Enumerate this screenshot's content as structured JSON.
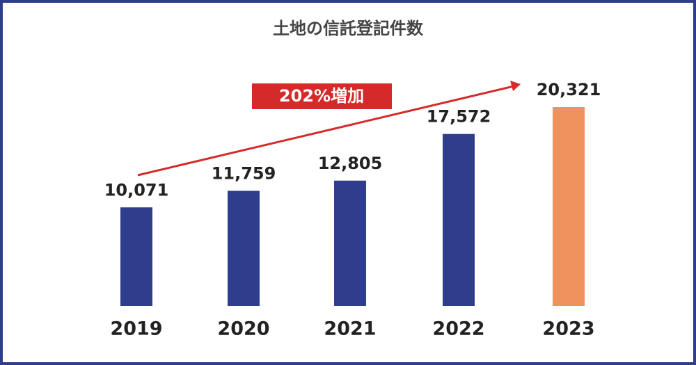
{
  "chart_data": {
    "type": "bar",
    "title": "土地の信託登記件数",
    "categories": [
      "2019",
      "2020",
      "2021",
      "2022",
      "2023"
    ],
    "values": [
      10071,
      11759,
      12805,
      17572,
      20321
    ],
    "value_labels": [
      "10,071",
      "11,759",
      "12,805",
      "17,572",
      "20,321"
    ],
    "colors": [
      "#2e3e8c",
      "#2e3e8c",
      "#2e3e8c",
      "#2e3e8c",
      "#f0925e"
    ],
    "annotation": "202%増加"
  }
}
